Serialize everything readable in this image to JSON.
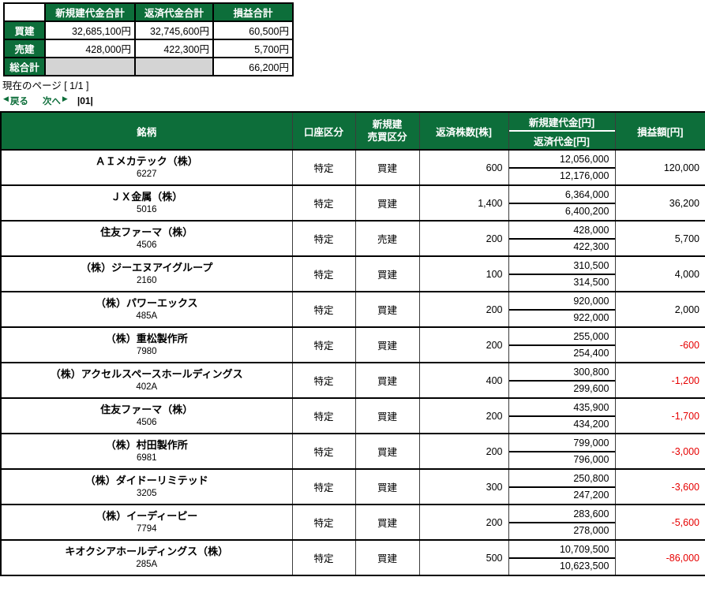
{
  "colors": {
    "green": "#0d6e3a",
    "red": "#e60000",
    "gray_cell": "#d4d4d4"
  },
  "summary": {
    "col_headers": [
      "新規建代金合計",
      "返済代金合計",
      "損益合計"
    ],
    "rows": [
      {
        "label": "買建",
        "new_total": "32,685,100円",
        "repay_total": "32,745,600円",
        "pl_total": "60,500円"
      },
      {
        "label": "売建",
        "new_total": "428,000円",
        "repay_total": "422,300円",
        "pl_total": "5,700円"
      },
      {
        "label": "総合計",
        "pl_total": "66,200円"
      }
    ]
  },
  "pagination": {
    "current_page_text": "現在のページ [ 1/1 ]",
    "back_arrow": "◀",
    "back_label": "戻る",
    "next_label": "次へ",
    "next_arrow": "▶",
    "page_indicator": "|01|"
  },
  "table": {
    "headers": {
      "meigara": "銘柄",
      "kouza": "口座区分",
      "shinkidate_line1": "新規建",
      "shinkidate_line2": "売買区分",
      "hensai_kabusu": "返済株数[株]",
      "shinkidate_daikin": "新規建代金[円]",
      "hensai_daikin": "返済代金[円]",
      "soneki": "損益額[円]"
    },
    "rows": [
      {
        "name": "ＡＩメカテック（株）",
        "code": "6227",
        "account": "特定",
        "side": "買建",
        "shares": "600",
        "new_amount": "12,056,000",
        "repay_amount": "12,176,000",
        "pl": "120,000"
      },
      {
        "name": "ＪＸ金属（株）",
        "code": "5016",
        "account": "特定",
        "side": "買建",
        "shares": "1,400",
        "new_amount": "6,364,000",
        "repay_amount": "6,400,200",
        "pl": "36,200"
      },
      {
        "name": "住友ファーマ（株）",
        "code": "4506",
        "account": "特定",
        "side": "売建",
        "shares": "200",
        "new_amount": "428,000",
        "repay_amount": "422,300",
        "pl": "5,700"
      },
      {
        "name": "（株）ジーエヌアイグループ",
        "code": "2160",
        "account": "特定",
        "side": "買建",
        "shares": "100",
        "new_amount": "310,500",
        "repay_amount": "314,500",
        "pl": "4,000"
      },
      {
        "name": "（株）パワーエックス",
        "code": "485A",
        "account": "特定",
        "side": "買建",
        "shares": "200",
        "new_amount": "920,000",
        "repay_amount": "922,000",
        "pl": "2,000"
      },
      {
        "name": "（株）重松製作所",
        "code": "7980",
        "account": "特定",
        "side": "買建",
        "shares": "200",
        "new_amount": "255,000",
        "repay_amount": "254,400",
        "pl": "-600"
      },
      {
        "name": "（株）アクセルスペースホールディングス",
        "code": "402A",
        "account": "特定",
        "side": "買建",
        "shares": "400",
        "new_amount": "300,800",
        "repay_amount": "299,600",
        "pl": "-1,200"
      },
      {
        "name": "住友ファーマ（株）",
        "code": "4506",
        "account": "特定",
        "side": "買建",
        "shares": "200",
        "new_amount": "435,900",
        "repay_amount": "434,200",
        "pl": "-1,700"
      },
      {
        "name": "（株）村田製作所",
        "code": "6981",
        "account": "特定",
        "side": "買建",
        "shares": "200",
        "new_amount": "799,000",
        "repay_amount": "796,000",
        "pl": "-3,000"
      },
      {
        "name": "（株）ダイドーリミテッド",
        "code": "3205",
        "account": "特定",
        "side": "買建",
        "shares": "300",
        "new_amount": "250,800",
        "repay_amount": "247,200",
        "pl": "-3,600"
      },
      {
        "name": "（株）イーディーピー",
        "code": "7794",
        "account": "特定",
        "side": "買建",
        "shares": "200",
        "new_amount": "283,600",
        "repay_amount": "278,000",
        "pl": "-5,600"
      },
      {
        "name": "キオクシアホールディングス（株）",
        "code": "285A",
        "account": "特定",
        "side": "買建",
        "shares": "500",
        "new_amount": "10,709,500",
        "repay_amount": "10,623,500",
        "pl": "-86,000"
      }
    ]
  }
}
